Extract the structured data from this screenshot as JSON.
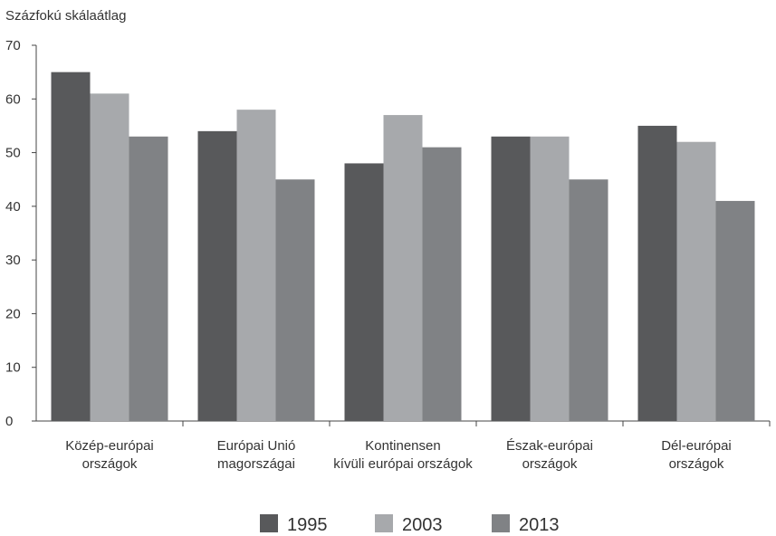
{
  "chart_data": {
    "type": "bar",
    "ylabel": "Százfokú skálaátlag",
    "ylim": [
      0,
      70
    ],
    "yticks": [
      0,
      10,
      20,
      30,
      40,
      50,
      60,
      70
    ],
    "grid": false,
    "legend_position": "bottom",
    "categories": [
      [
        "Közép-európai",
        "országok"
      ],
      [
        "Európai Unió",
        "magországai"
      ],
      [
        "Kontinensen",
        "kívüli európai országok"
      ],
      [
        "Észak-európai",
        "országok"
      ],
      [
        "Dél-európai",
        "országok"
      ]
    ],
    "series": [
      {
        "name": "1995",
        "color": "#58595b",
        "values": [
          65,
          54,
          48,
          53,
          55
        ]
      },
      {
        "name": "2003",
        "color": "#a7a9ac",
        "values": [
          61,
          58,
          57,
          53,
          52
        ]
      },
      {
        "name": "2013",
        "color": "#808285",
        "values": [
          53,
          45,
          51,
          45,
          41
        ]
      }
    ]
  }
}
